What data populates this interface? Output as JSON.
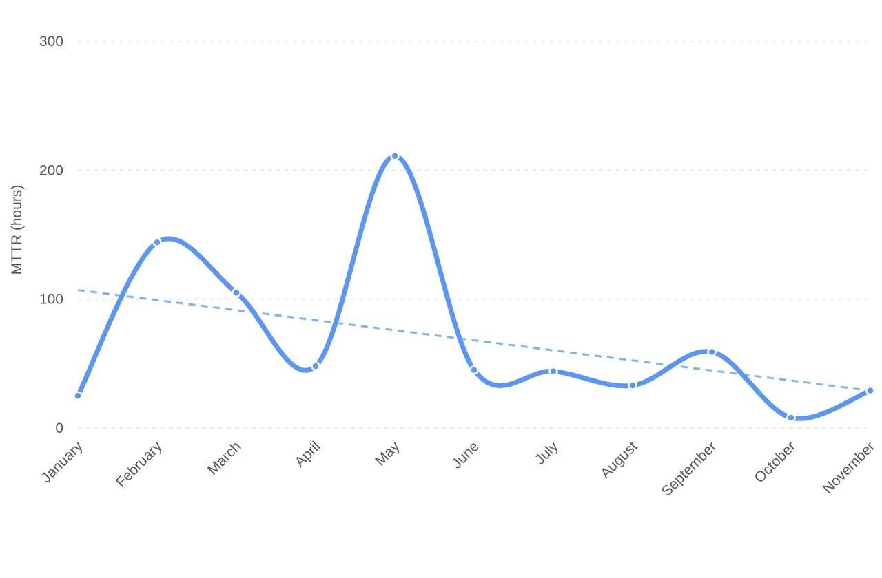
{
  "chart_data": {
    "type": "line",
    "title": "",
    "xlabel": "",
    "ylabel": "MTTR (hours)",
    "categories": [
      "January",
      "February",
      "March",
      "April",
      "May",
      "June",
      "July",
      "August",
      "September",
      "October",
      "November"
    ],
    "series": [
      {
        "values": [
          25,
          144,
          105,
          48,
          211,
          45,
          44,
          33,
          59,
          8,
          29
        ],
        "color": "#5b96f4",
        "smooth": true
      }
    ],
    "trendline": {
      "start": 107,
      "end": 29,
      "color": "#7fb2f5",
      "style": "dashed"
    },
    "ylim": [
      0,
      300
    ],
    "yticks": [
      "0",
      "100",
      "200",
      "300"
    ],
    "grid": true,
    "legend": "none"
  }
}
